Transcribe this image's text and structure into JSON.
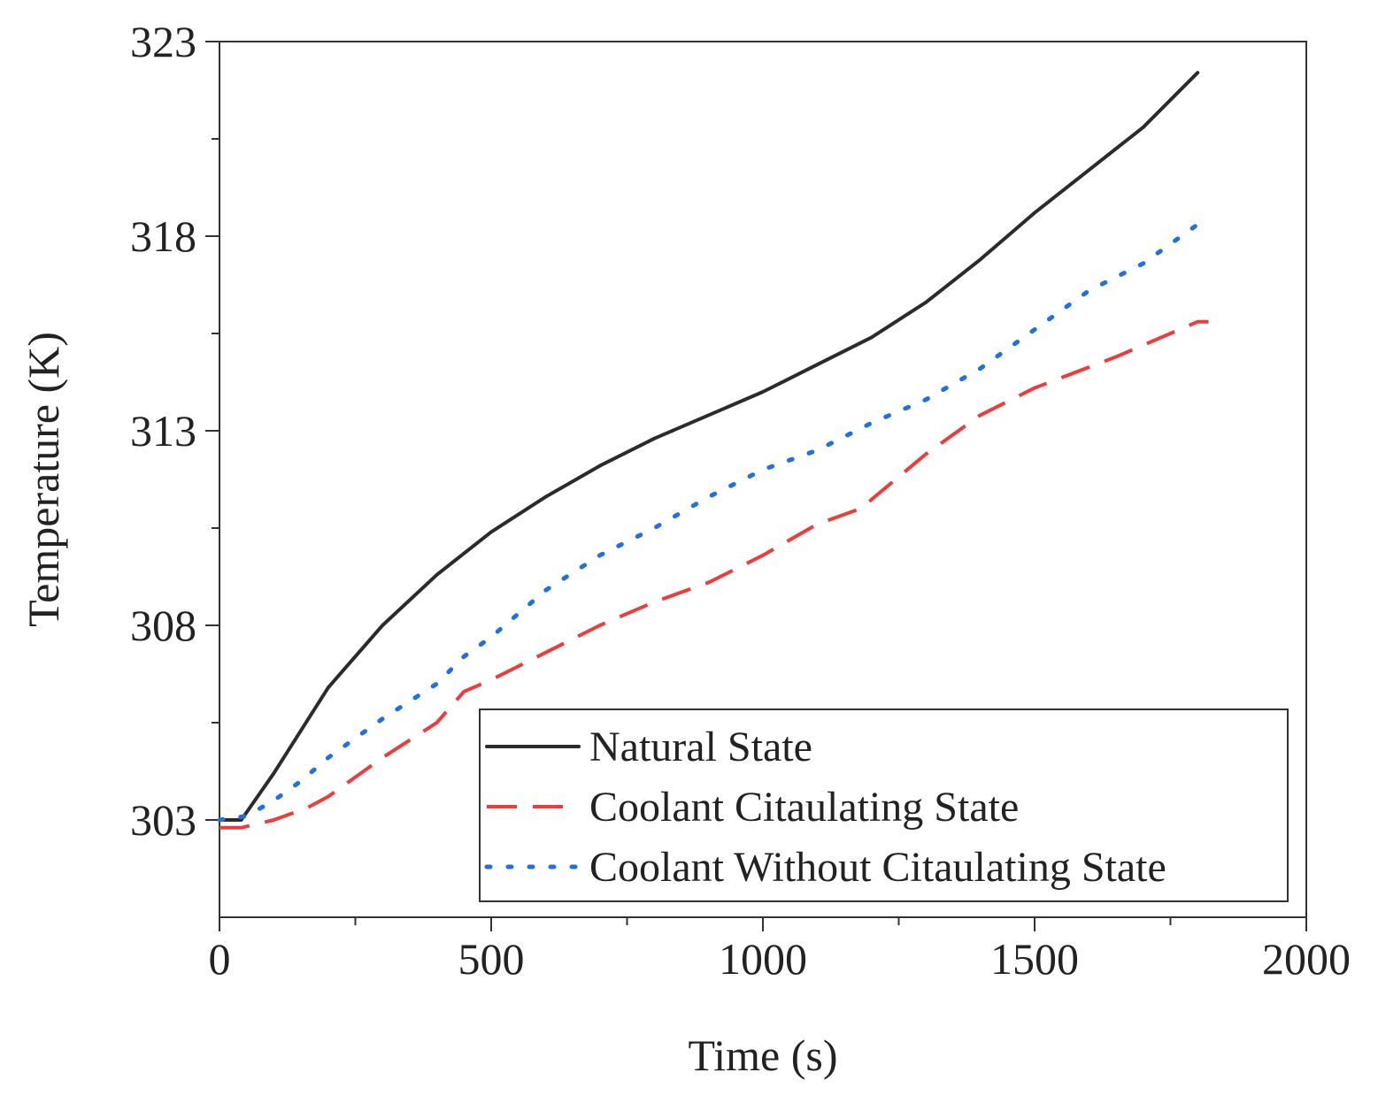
{
  "chart_data": {
    "type": "line",
    "title": "",
    "xlabel": "Time (s)",
    "ylabel": "Temperature (K)",
    "xlim": [
      0,
      2000
    ],
    "ylim": [
      300.5,
      323
    ],
    "xticks": [
      0,
      500,
      1000,
      1500,
      2000
    ],
    "yticks": [
      303,
      308,
      313,
      318,
      323
    ],
    "x_minor_step": 250,
    "y_minor_step": 2.5,
    "grid": false,
    "legend_position": "bottom-right",
    "series": [
      {
        "name": "Natural State",
        "style": "solid",
        "color": "#2b2b2b",
        "x": [
          0,
          40,
          100,
          200,
          300,
          400,
          500,
          600,
          700,
          800,
          900,
          1000,
          1100,
          1200,
          1300,
          1400,
          1500,
          1600,
          1700,
          1800
        ],
        "y": [
          303.0,
          303.0,
          304.2,
          306.4,
          308.0,
          309.3,
          310.4,
          311.3,
          312.1,
          312.8,
          313.4,
          314.0,
          314.7,
          315.4,
          316.3,
          317.4,
          318.6,
          319.7,
          320.8,
          322.2
        ]
      },
      {
        "name": "Coolant Citaulating State",
        "style": "dashed",
        "color": "#ee3b3b",
        "x": [
          0,
          40,
          100,
          160,
          200,
          300,
          400,
          450,
          500,
          600,
          700,
          800,
          900,
          1000,
          1100,
          1180,
          1300,
          1400,
          1500,
          1650,
          1700,
          1800,
          1820
        ],
        "y": [
          302.8,
          302.8,
          303.0,
          303.3,
          303.6,
          304.6,
          305.5,
          306.3,
          306.6,
          307.3,
          308.0,
          308.6,
          309.1,
          309.8,
          310.6,
          311.0,
          312.4,
          313.4,
          314.1,
          314.9,
          315.2,
          315.8,
          315.8
        ]
      },
      {
        "name": "Coolant Without Citaulating State",
        "style": "dotted",
        "color": "#1f6fe5",
        "x": [
          0,
          50,
          100,
          150,
          200,
          300,
          400,
          450,
          500,
          600,
          700,
          800,
          900,
          1000,
          1100,
          1200,
          1300,
          1400,
          1500,
          1600,
          1700,
          1800
        ],
        "y": [
          303.0,
          303.1,
          303.5,
          304.0,
          304.6,
          305.6,
          306.5,
          307.2,
          307.7,
          308.9,
          309.8,
          310.5,
          311.3,
          312.0,
          312.5,
          313.2,
          313.8,
          314.6,
          315.6,
          316.6,
          317.3,
          318.3
        ]
      }
    ]
  }
}
